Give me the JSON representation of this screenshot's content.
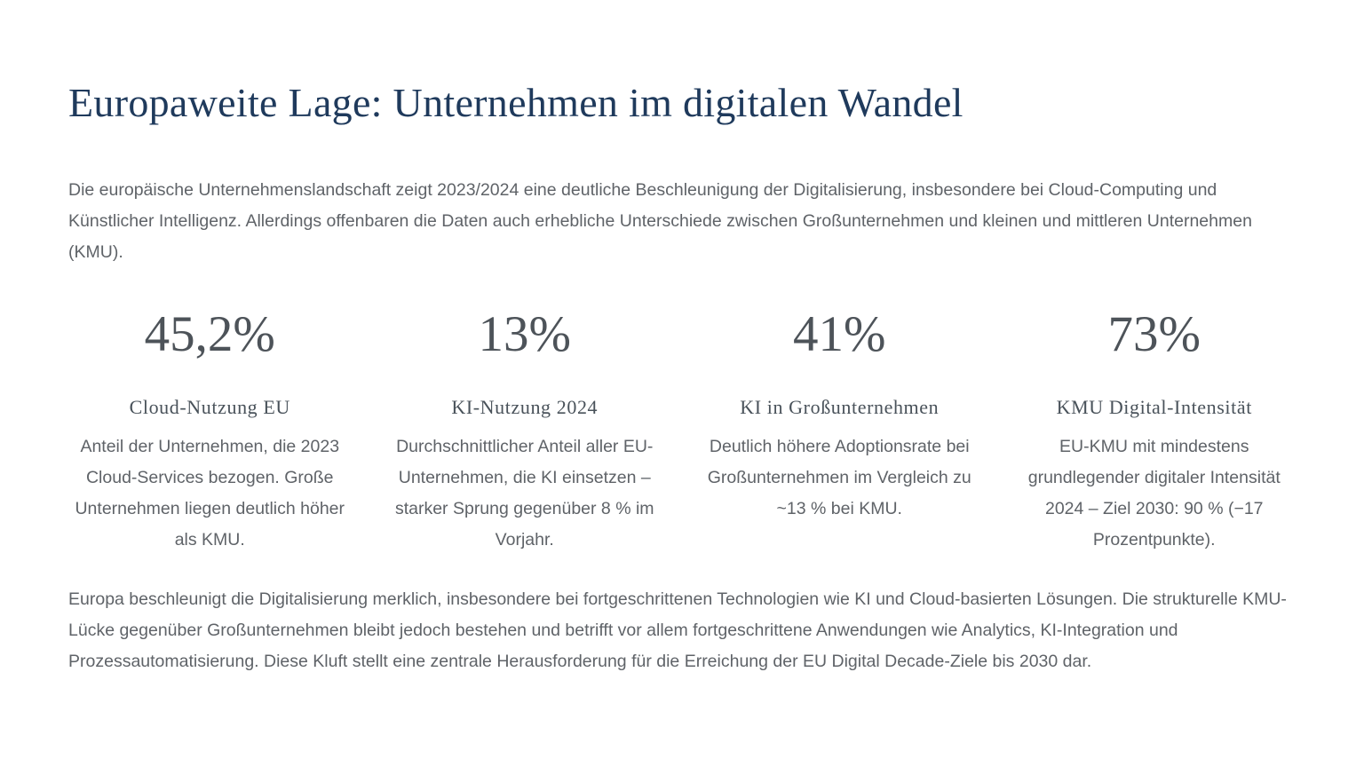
{
  "page": {
    "title": "Europaweite Lage: Unternehmen im digitalen Wandel",
    "intro": "Die europäische Unternehmenslandschaft zeigt 2023/2024 eine deutliche Beschleunigung der Digitalisierung, insbesondere bei Cloud-Computing und Künstlicher Intelligenz. Allerdings offenbaren die Daten auch erhebliche Unterschiede zwischen Großunternehmen und kleinen und mittleren Unternehmen (KMU).",
    "conclusion": "Europa beschleunigt die Digitalisierung merklich, insbesondere bei fortgeschrittenen Technologien wie KI und Cloud-basierten Lösungen. Die strukturelle KMU-Lücke gegenüber Großunternehmen bleibt jedoch bestehen und betrifft vor allem fortgeschrittene Anwendungen wie Analytics, KI-Integration und Prozessautomatisierung. Diese Kluft stellt eine zentrale Herausforderung für die Erreichung der EU Digital Decade-Ziele bis 2030 dar."
  },
  "stats": [
    {
      "value": "45,2%",
      "label": "Cloud-Nutzung EU",
      "description": "Anteil der Unternehmen, die 2023 Cloud-Services bezogen. Große Unternehmen liegen deutlich höher als KMU."
    },
    {
      "value": "13%",
      "label": "KI-Nutzung 2024",
      "description": "Durchschnittlicher Anteil aller EU-Unternehmen, die KI einsetzen – starker Sprung gegenüber 8 % im Vorjahr."
    },
    {
      "value": "41%",
      "label": "KI in Großunternehmen",
      "description": "Deutlich höhere Adoptionsrate bei Großunternehmen im Vergleich zu ~13 % bei KMU."
    },
    {
      "value": "73%",
      "label": "KMU Digital-Intensität",
      "description": "EU-KMU mit mindestens grundlegender digitaler Intensität 2024 – Ziel 2030: 90 % (−17 Prozentpunkte)."
    }
  ],
  "colors": {
    "title_color": "#1f3a5c",
    "body_color": "#5f6368",
    "stat_value_color": "#4d5359",
    "stat_label_color": "#49525a",
    "bar_color": "#1e3a5a",
    "bg_color": "#ffffff"
  }
}
